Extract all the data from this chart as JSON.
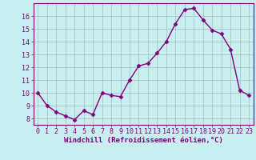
{
  "x": [
    0,
    1,
    2,
    3,
    4,
    5,
    6,
    7,
    8,
    9,
    10,
    11,
    12,
    13,
    14,
    15,
    16,
    17,
    18,
    19,
    20,
    21,
    22,
    23
  ],
  "y": [
    10.0,
    9.0,
    8.5,
    8.2,
    7.9,
    8.6,
    8.3,
    10.0,
    9.8,
    9.7,
    11.0,
    12.1,
    12.3,
    13.1,
    14.0,
    15.4,
    16.5,
    16.6,
    15.7,
    14.9,
    14.6,
    13.4,
    10.2,
    9.8
  ],
  "line_color": "#800080",
  "marker": "D",
  "markersize": 2.5,
  "linewidth": 1.0,
  "bg_color": "#c8eef0",
  "grid_color": "#9dbfbf",
  "xlabel": "Windchill (Refroidissement éolien,°C)",
  "xlabel_fontsize": 6.5,
  "tick_fontsize": 6,
  "ylim": [
    7.5,
    17.0
  ],
  "xlim": [
    -0.5,
    23.5
  ],
  "yticks": [
    8,
    9,
    10,
    11,
    12,
    13,
    14,
    15,
    16
  ],
  "xticks": [
    0,
    1,
    2,
    3,
    4,
    5,
    6,
    7,
    8,
    9,
    10,
    11,
    12,
    13,
    14,
    15,
    16,
    17,
    18,
    19,
    20,
    21,
    22,
    23
  ]
}
